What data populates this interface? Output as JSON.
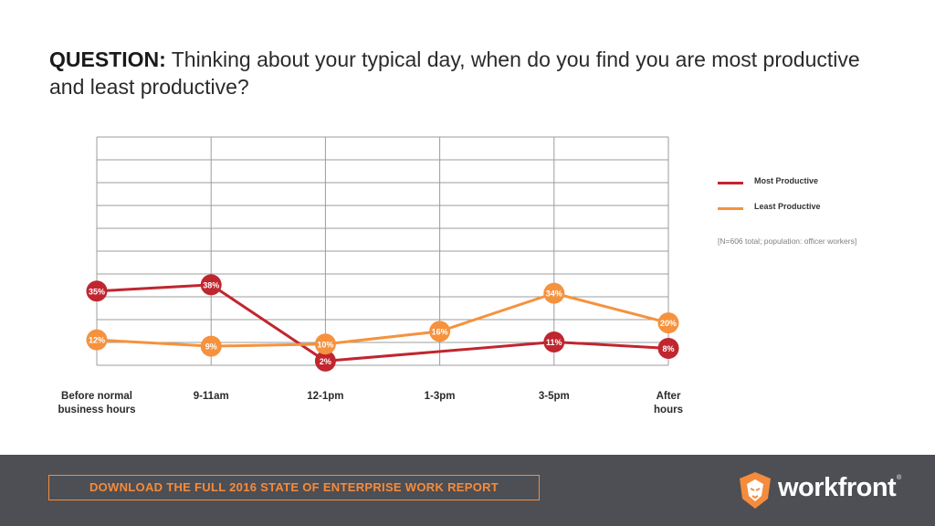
{
  "question": {
    "label": "QUESTION:",
    "text": " Thinking about your typical day, when do you find you are most productive and least productive?"
  },
  "colors": {
    "most": "#c0262f",
    "least": "#f5923e",
    "grid": "#9c9c9c",
    "footer": "#4d4f54",
    "accent": "#f58b3c"
  },
  "chart_data": {
    "type": "line",
    "categories": [
      "Before normal business hours",
      "9-11am",
      "12-1pm",
      "1-3pm",
      "3-5pm",
      "After hours"
    ],
    "series": [
      {
        "name": "Most Productive",
        "color": "#c0262f",
        "values": [
          35,
          38,
          2,
          null,
          11,
          8
        ],
        "labels": [
          "35%",
          "38%",
          "2%",
          "",
          "11%",
          "8%"
        ]
      },
      {
        "name": "Least Productive",
        "color": "#f5923e",
        "values": [
          12,
          9,
          10,
          16,
          34,
          20
        ],
        "labels": [
          "12%",
          "9%",
          "10%",
          "16%",
          "34%",
          "20%"
        ]
      }
    ],
    "legend_position": "right",
    "grid": true
  },
  "note": "[N=606 total; population: officer workers]",
  "footer": {
    "cta_label": "DOWNLOAD THE FULL 2016 STATE OF ENTERPRISE WORK REPORT",
    "brand_name": "workfront",
    "brand_tm": "®",
    "brand_icon": "lion-icon"
  }
}
